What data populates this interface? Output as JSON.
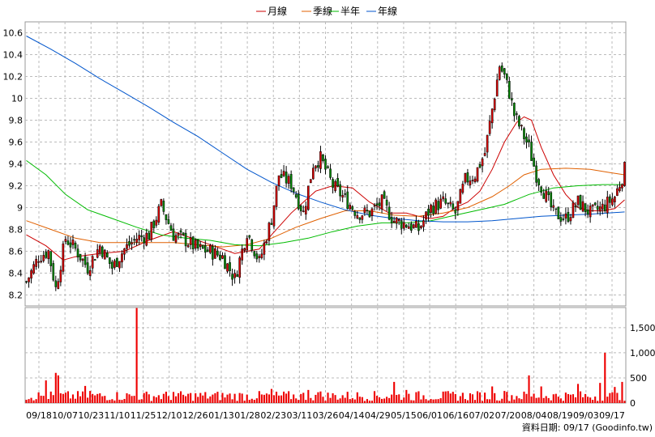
{
  "legend": [
    {
      "label": "月線",
      "color": "#cc0000"
    },
    {
      "label": "季線",
      "color": "#e06000"
    },
    {
      "label": "半年",
      "color": "#00bb00"
    },
    {
      "label": "年線",
      "color": "#0055cc"
    }
  ],
  "footer": "資料日期: 09/17  (Goodinfo.tw)",
  "chart_data": [
    {
      "type": "candlestick",
      "ylim": [
        8.1,
        10.7
      ],
      "yticks": [
        8.2,
        8.4,
        8.6,
        8.8,
        9,
        9.2,
        9.4,
        9.6,
        9.8,
        10,
        10.2,
        10.4,
        10.6
      ],
      "grid": true,
      "x_labels": [
        "09/18",
        "10/07",
        "10/23",
        "11/10",
        "11/25",
        "12/10",
        "12/26",
        "01/13",
        "01/28",
        "02/23",
        "03/11",
        "03/26",
        "04/14",
        "04/29",
        "05/15",
        "06/01",
        "06/16",
        "07/02",
        "07/20",
        "08/04",
        "08/19",
        "09/03",
        "09/17"
      ],
      "close_anchors": [
        [
          0,
          8.32
        ],
        [
          5,
          8.55
        ],
        [
          9,
          8.6
        ],
        [
          12,
          8.26
        ],
        [
          16,
          8.72
        ],
        [
          20,
          8.62
        ],
        [
          25,
          8.45
        ],
        [
          30,
          8.65
        ],
        [
          35,
          8.45
        ],
        [
          40,
          8.62
        ],
        [
          45,
          8.72
        ],
        [
          50,
          8.75
        ],
        [
          55,
          9.02
        ],
        [
          60,
          8.75
        ],
        [
          65,
          8.7
        ],
        [
          70,
          8.62
        ],
        [
          75,
          8.6
        ],
        [
          80,
          8.55
        ],
        [
          85,
          8.35
        ],
        [
          90,
          8.78
        ],
        [
          95,
          8.5
        ],
        [
          100,
          8.9
        ],
        [
          103,
          9.3
        ],
        [
          108,
          9.22
        ],
        [
          113,
          8.95
        ],
        [
          117,
          9.4
        ],
        [
          120,
          9.45
        ],
        [
          125,
          9.2
        ],
        [
          130,
          9.08
        ],
        [
          135,
          8.95
        ],
        [
          140,
          8.95
        ],
        [
          145,
          9.05
        ],
        [
          150,
          8.88
        ],
        [
          155,
          8.85
        ],
        [
          160,
          8.8
        ],
        [
          165,
          9.0
        ],
        [
          170,
          9.05
        ],
        [
          175,
          8.95
        ],
        [
          179,
          9.25
        ],
        [
          183,
          9.3
        ],
        [
          187,
          9.5
        ],
        [
          190,
          9.9
        ],
        [
          193,
          10.3
        ],
        [
          195,
          10.2
        ],
        [
          197,
          10.05
        ],
        [
          199,
          9.85
        ],
        [
          202,
          9.7
        ],
        [
          205,
          9.55
        ],
        [
          208,
          9.3
        ],
        [
          212,
          9.1
        ],
        [
          215,
          8.95
        ],
        [
          220,
          8.9
        ],
        [
          225,
          9.05
        ],
        [
          230,
          8.95
        ],
        [
          235,
          9.0
        ],
        [
          240,
          9.1
        ],
        [
          243,
          9.28
        ],
        [
          244,
          9.35
        ]
      ],
      "ma_lines": [
        {
          "name": "月線",
          "points": [
            [
              0,
              8.75
            ],
            [
              8,
              8.65
            ],
            [
              15,
              8.52
            ],
            [
              20,
              8.55
            ],
            [
              30,
              8.58
            ],
            [
              40,
              8.6
            ],
            [
              50,
              8.7
            ],
            [
              60,
              8.78
            ],
            [
              70,
              8.7
            ],
            [
              80,
              8.62
            ],
            [
              85,
              8.58
            ],
            [
              95,
              8.62
            ],
            [
              100,
              8.75
            ],
            [
              108,
              8.95
            ],
            [
              118,
              9.15
            ],
            [
              125,
              9.2
            ],
            [
              133,
              9.18
            ],
            [
              140,
              9.05
            ],
            [
              148,
              8.95
            ],
            [
              155,
              8.95
            ],
            [
              160,
              8.92
            ],
            [
              165,
              8.9
            ],
            [
              170,
              8.92
            ],
            [
              175,
              9.0
            ],
            [
              180,
              9.05
            ],
            [
              185,
              9.15
            ],
            [
              190,
              9.35
            ],
            [
              195,
              9.6
            ],
            [
              200,
              9.78
            ],
            [
              203,
              9.83
            ],
            [
              206,
              9.8
            ],
            [
              210,
              9.55
            ],
            [
              215,
              9.3
            ],
            [
              220,
              9.12
            ],
            [
              225,
              9.0
            ],
            [
              230,
              8.97
            ],
            [
              235,
              8.97
            ],
            [
              240,
              8.99
            ],
            [
              244,
              9.07
            ]
          ]
        },
        {
          "name": "季線",
          "points": [
            [
              0,
              8.88
            ],
            [
              10,
              8.8
            ],
            [
              20,
              8.72
            ],
            [
              30,
              8.68
            ],
            [
              40,
              8.68
            ],
            [
              50,
              8.68
            ],
            [
              60,
              8.68
            ],
            [
              70,
              8.66
            ],
            [
              80,
              8.64
            ],
            [
              90,
              8.66
            ],
            [
              100,
              8.72
            ],
            [
              110,
              8.82
            ],
            [
              120,
              8.9
            ],
            [
              130,
              8.97
            ],
            [
              140,
              8.97
            ],
            [
              150,
              8.93
            ],
            [
              160,
              8.92
            ],
            [
              170,
              8.95
            ],
            [
              180,
              9.0
            ],
            [
              190,
              9.1
            ],
            [
              197,
              9.2
            ],
            [
              203,
              9.3
            ],
            [
              210,
              9.35
            ],
            [
              220,
              9.36
            ],
            [
              230,
              9.35
            ],
            [
              238,
              9.32
            ],
            [
              244,
              9.3
            ]
          ]
        },
        {
          "name": "半年",
          "points": [
            [
              0,
              9.43
            ],
            [
              8,
              9.3
            ],
            [
              16,
              9.12
            ],
            [
              25,
              8.98
            ],
            [
              35,
              8.9
            ],
            [
              45,
              8.82
            ],
            [
              55,
              8.75
            ],
            [
              65,
              8.72
            ],
            [
              75,
              8.7
            ],
            [
              85,
              8.66
            ],
            [
              95,
              8.65
            ],
            [
              105,
              8.68
            ],
            [
              115,
              8.72
            ],
            [
              125,
              8.78
            ],
            [
              135,
              8.83
            ],
            [
              145,
              8.86
            ],
            [
              155,
              8.86
            ],
            [
              165,
              8.88
            ],
            [
              175,
              8.93
            ],
            [
              185,
              8.98
            ],
            [
              195,
              9.03
            ],
            [
              205,
              9.12
            ],
            [
              215,
              9.18
            ],
            [
              225,
              9.2
            ],
            [
              235,
              9.21
            ],
            [
              244,
              9.21
            ]
          ]
        },
        {
          "name": "年線",
          "points": [
            [
              0,
              10.57
            ],
            [
              10,
              10.45
            ],
            [
              20,
              10.32
            ],
            [
              30,
              10.18
            ],
            [
              40,
              10.05
            ],
            [
              50,
              9.92
            ],
            [
              60,
              9.78
            ],
            [
              70,
              9.65
            ],
            [
              80,
              9.5
            ],
            [
              90,
              9.35
            ],
            [
              100,
              9.23
            ],
            [
              110,
              9.13
            ],
            [
              120,
              9.05
            ],
            [
              130,
              8.98
            ],
            [
              140,
              8.93
            ],
            [
              150,
              8.9
            ],
            [
              160,
              8.88
            ],
            [
              170,
              8.87
            ],
            [
              180,
              8.87
            ],
            [
              190,
              8.88
            ],
            [
              200,
              8.9
            ],
            [
              210,
              8.92
            ],
            [
              220,
              8.93
            ],
            [
              230,
              8.94
            ],
            [
              244,
              8.96
            ]
          ]
        }
      ]
    },
    {
      "type": "bar",
      "ylim": [
        0,
        1900
      ],
      "yticks": [
        0,
        500,
        1000,
        1500
      ],
      "ytick_labels": [
        "0",
        "500",
        "1,000",
        "1,500"
      ],
      "volume_spikes": [
        [
          8,
          450
        ],
        [
          12,
          600
        ],
        [
          13,
          550
        ],
        [
          24,
          340
        ],
        [
          26,
          240
        ],
        [
          45,
          1890
        ],
        [
          60,
          220
        ],
        [
          100,
          280
        ],
        [
          115,
          260
        ],
        [
          120,
          230
        ],
        [
          150,
          420
        ],
        [
          155,
          260
        ],
        [
          190,
          330
        ],
        [
          195,
          240
        ],
        [
          205,
          550
        ],
        [
          210,
          330
        ],
        [
          225,
          380
        ],
        [
          234,
          400
        ],
        [
          236,
          1000
        ],
        [
          240,
          320
        ],
        [
          243,
          420
        ]
      ]
    }
  ]
}
